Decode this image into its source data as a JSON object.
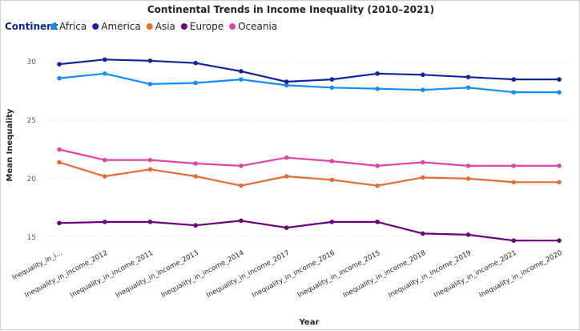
{
  "chart_data": {
    "type": "line",
    "title": "Continental Trends in Income Inequality (2010–2021)",
    "xlabel": "Year",
    "ylabel": "Mean Inequality",
    "legend_title": "Continent",
    "legend_position": "top-left",
    "grid": true,
    "ylim": [
      14.3,
      31.8
    ],
    "yticks": [
      15,
      20,
      25,
      30
    ],
    "categories": [
      "Inequality_in_i...",
      "Inequality_in_income_2012",
      "Inequality_in_income_2011",
      "Inequality_in_income_2013",
      "Inequality_in_income_2014",
      "Inequality_in_income_2017",
      "Inequality_in_income_2016",
      "Inequality_in_income_2015",
      "Inequality_in_income_2018",
      "Inequality_in_income_2019",
      "Inequality_in_income_2021",
      "Inequality_in_income_2020"
    ],
    "series": [
      {
        "name": "Africa",
        "color": "#118dff",
        "values": [
          28.6,
          29.0,
          28.1,
          28.2,
          28.5,
          28.0,
          27.8,
          27.7,
          27.6,
          27.8,
          27.4,
          27.4
        ]
      },
      {
        "name": "America",
        "color": "#12239e",
        "values": [
          29.8,
          30.2,
          30.1,
          29.9,
          29.2,
          28.3,
          28.5,
          29.0,
          28.9,
          28.7,
          28.5,
          28.5
        ]
      },
      {
        "name": "Asia",
        "color": "#e66c37",
        "values": [
          21.4,
          20.2,
          20.8,
          20.2,
          19.4,
          20.2,
          19.9,
          19.4,
          20.1,
          20.0,
          19.7,
          19.7
        ]
      },
      {
        "name": "Europe",
        "color": "#6b007b",
        "values": [
          16.2,
          16.3,
          16.3,
          16.0,
          16.4,
          15.8,
          16.3,
          16.3,
          15.3,
          15.2,
          14.7,
          14.7
        ]
      },
      {
        "name": "Oceania",
        "color": "#e044a7",
        "values": [
          22.5,
          21.6,
          21.6,
          21.3,
          21.1,
          21.8,
          21.5,
          21.1,
          21.4,
          21.1,
          21.1,
          21.1
        ]
      }
    ]
  }
}
